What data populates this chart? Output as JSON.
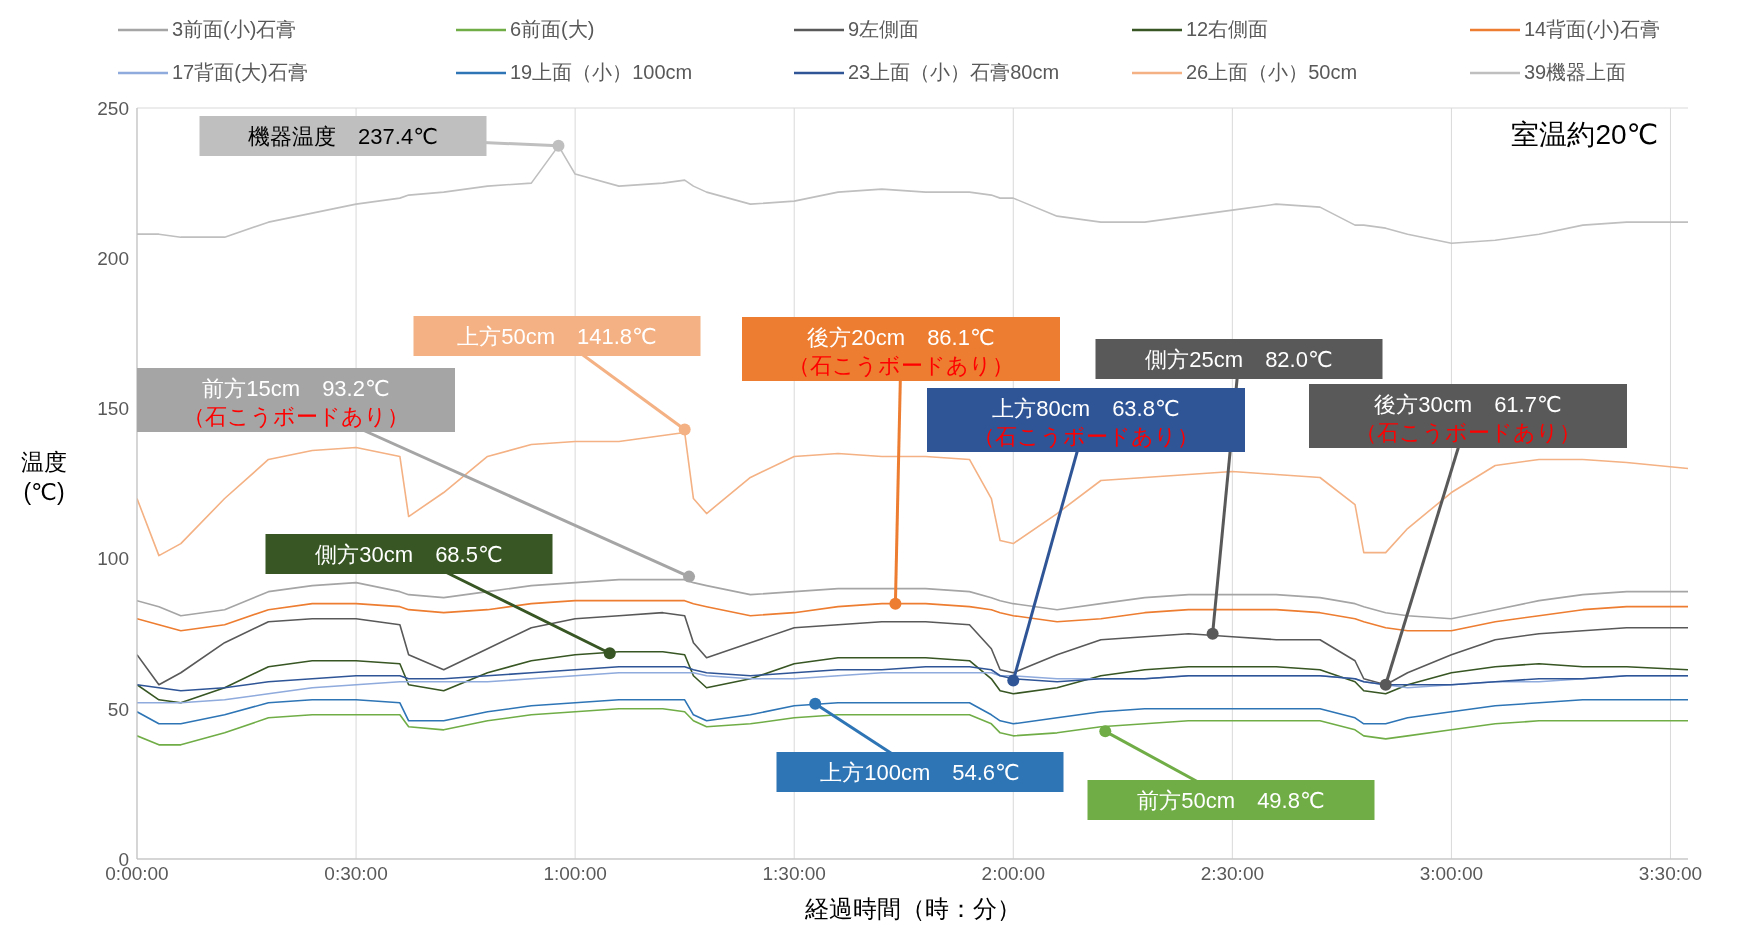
{
  "chart_data": {
    "type": "line",
    "xlabel": "経過時間（時：分）",
    "ylabel": "温度\n(℃)",
    "legend": "top",
    "grid": true,
    "xlim": [
      0,
      3.54
    ],
    "ylim": [
      0,
      250
    ],
    "yticks": [
      0,
      50,
      100,
      150,
      200,
      250
    ],
    "xticks": [
      {
        "value": 0,
        "label": "0:00:00"
      },
      {
        "value": 0.5,
        "label": "0:30:00"
      },
      {
        "value": 1,
        "label": "1:00:00"
      },
      {
        "value": 1.5,
        "label": "1:30:00"
      },
      {
        "value": 2,
        "label": "2:00:00"
      },
      {
        "value": 2.5,
        "label": "2:30:00"
      },
      {
        "value": 3,
        "label": "3:00:00"
      },
      {
        "value": 3.5,
        "label": "3:30:00"
      }
    ],
    "x": [
      0,
      0.05,
      0.1,
      0.2,
      0.3,
      0.4,
      0.5,
      0.6,
      0.62,
      0.7,
      0.8,
      0.9,
      1.0,
      1.1,
      1.2,
      1.25,
      1.27,
      1.3,
      1.4,
      1.5,
      1.6,
      1.7,
      1.8,
      1.9,
      1.95,
      1.97,
      2.0,
      2.1,
      2.2,
      2.3,
      2.4,
      2.5,
      2.6,
      2.7,
      2.78,
      2.8,
      2.85,
      2.9,
      3.0,
      3.1,
      3.2,
      3.3,
      3.4,
      3.54
    ],
    "series": [
      {
        "name": "3前面(小)石膏",
        "color": "#a5a5a5",
        "values": [
          86,
          84,
          81,
          83,
          89,
          91,
          92,
          89,
          88,
          87,
          89,
          91,
          92,
          93,
          93,
          93,
          92,
          91,
          88,
          89,
          90,
          90,
          90,
          89,
          87,
          86,
          85,
          83,
          85,
          87,
          88,
          88,
          88,
          87,
          85,
          84,
          82,
          81,
          80,
          83,
          86,
          88,
          89,
          89
        ]
      },
      {
        "name": "6前面(大)",
        "color": "#70ad47",
        "values": [
          41,
          38,
          38,
          42,
          47,
          48,
          48,
          48,
          44,
          43,
          46,
          48,
          49,
          50,
          50,
          49,
          46,
          44,
          45,
          47,
          48,
          48,
          48,
          48,
          45,
          42,
          41,
          42,
          44,
          45,
          46,
          46,
          46,
          46,
          43,
          41,
          40,
          41,
          43,
          45,
          46,
          46,
          46,
          46
        ]
      },
      {
        "name": "9左側面",
        "color": "#595959",
        "values": [
          68,
          58,
          62,
          72,
          79,
          80,
          80,
          78,
          68,
          63,
          70,
          77,
          80,
          81,
          82,
          81,
          72,
          67,
          72,
          77,
          78,
          79,
          79,
          78,
          70,
          63,
          62,
          68,
          73,
          74,
          75,
          74,
          73,
          73,
          66,
          60,
          58,
          62,
          68,
          73,
          75,
          76,
          77,
          77
        ]
      },
      {
        "name": "12右側面",
        "color": "#375623",
        "values": [
          58,
          53,
          52,
          57,
          64,
          66,
          66,
          65,
          58,
          56,
          62,
          66,
          68,
          69,
          69,
          68,
          61,
          57,
          60,
          65,
          67,
          67,
          67,
          66,
          60,
          56,
          55,
          57,
          61,
          63,
          64,
          64,
          64,
          63,
          59,
          56,
          55,
          58,
          62,
          64,
          65,
          64,
          64,
          63
        ]
      },
      {
        "name": "14背面(小)石膏",
        "color": "#ed7d31",
        "values": [
          80,
          78,
          76,
          78,
          83,
          85,
          85,
          84,
          83,
          82,
          83,
          85,
          86,
          86,
          86,
          86,
          85,
          84,
          81,
          82,
          84,
          85,
          85,
          84,
          83,
          82,
          81,
          79,
          80,
          82,
          83,
          83,
          83,
          82,
          80,
          79,
          77,
          76,
          76,
          79,
          81,
          83,
          84,
          84
        ]
      },
      {
        "name": "17背面(大)石膏",
        "color": "#8faadc",
        "values": [
          52,
          52,
          52,
          53,
          55,
          57,
          58,
          59,
          59,
          59,
          59,
          60,
          61,
          62,
          62,
          62,
          62,
          61,
          60,
          60,
          61,
          62,
          62,
          62,
          62,
          61,
          61,
          60,
          60,
          60,
          61,
          61,
          61,
          61,
          60,
          59,
          58,
          57,
          58,
          59,
          59,
          60,
          61,
          61
        ]
      },
      {
        "name": "19上面（小）100cm",
        "color": "#2e75b6",
        "values": [
          49,
          45,
          45,
          48,
          52,
          53,
          53,
          52,
          46,
          46,
          49,
          51,
          52,
          53,
          53,
          53,
          48,
          46,
          48,
          51,
          52,
          52,
          52,
          52,
          48,
          46,
          45,
          47,
          49,
          50,
          50,
          50,
          50,
          50,
          47,
          45,
          45,
          47,
          49,
          51,
          52,
          53,
          53,
          53
        ]
      },
      {
        "name": "23上面（小）石膏80cm",
        "color": "#2f5597",
        "values": [
          58,
          57,
          56,
          57,
          59,
          60,
          61,
          61,
          60,
          60,
          61,
          62,
          63,
          64,
          64,
          64,
          63,
          62,
          61,
          62,
          63,
          63,
          64,
          64,
          63,
          61,
          60,
          59,
          60,
          60,
          61,
          61,
          61,
          61,
          60,
          59,
          58,
          58,
          58,
          59,
          60,
          60,
          61,
          61
        ]
      },
      {
        "name": "26上面（小）50cm",
        "color": "#f4b183",
        "values": [
          120,
          101,
          105,
          120,
          133,
          136,
          137,
          134,
          114,
          122,
          134,
          138,
          139,
          139,
          141,
          142,
          120,
          115,
          127,
          134,
          135,
          134,
          134,
          133,
          120,
          106,
          105,
          115,
          126,
          127,
          128,
          129,
          128,
          127,
          118,
          102,
          102,
          110,
          122,
          131,
          133,
          133,
          132,
          130
        ]
      },
      {
        "name": "39機器上面",
        "color": "#bfbfbf",
        "x": [
          0,
          0.05,
          0.1,
          0.2,
          0.3,
          0.4,
          0.5,
          0.6,
          0.62,
          0.7,
          0.8,
          0.9,
          0.962,
          1.0,
          1.1,
          1.2,
          1.25,
          1.27,
          1.3,
          1.4,
          1.5,
          1.6,
          1.7,
          1.8,
          1.9,
          1.95,
          1.97,
          2.0,
          2.1,
          2.2,
          2.3,
          2.4,
          2.5,
          2.6,
          2.7,
          2.78,
          2.8,
          2.85,
          2.9,
          3.0,
          3.1,
          3.2,
          3.3,
          3.4,
          3.54
        ],
        "values": [
          208,
          208,
          207,
          207,
          212,
          215,
          218,
          220,
          221,
          222,
          224,
          225,
          237.4,
          228,
          224,
          225,
          226,
          224,
          222,
          218,
          219,
          222,
          223,
          222,
          222,
          221,
          220,
          220,
          214,
          212,
          212,
          214,
          216,
          218,
          217,
          211,
          211,
          210,
          208,
          205,
          206,
          208,
          211,
          212,
          212
        ]
      }
    ],
    "annotations": [
      {
        "text": "機器温度　237.4℃",
        "x": 0.962,
        "y": 237.4
      },
      {
        "text": "上方50cm　141.8℃",
        "x": 1.25,
        "y": 143
      },
      {
        "text": "前方15cm　93.2℃\n（石こうボードあり）",
        "x": 1.26,
        "y": 94
      },
      {
        "text": "後方20cm　86.1℃\n（石こうボードあり）",
        "x": 1.731,
        "y": 85
      },
      {
        "text": "側方25cm　82.0℃",
        "x": 2.455,
        "y": 75
      },
      {
        "text": "側方30cm　68.5℃",
        "x": 1.079,
        "y": 68.5
      },
      {
        "text": "上方80cm　63.8℃\n（石こうボードあり）",
        "x": 2.0,
        "y": 59.4
      },
      {
        "text": "後方30cm　61.7℃\n（石こうボードあり）",
        "x": 2.85,
        "y": 58
      },
      {
        "text": "上方100cm　54.6℃",
        "x": 1.548,
        "y": 51.7
      },
      {
        "text": "前方50cm　49.8℃",
        "x": 2.21,
        "y": 42.5
      },
      "室温約20℃"
    ]
  }
}
